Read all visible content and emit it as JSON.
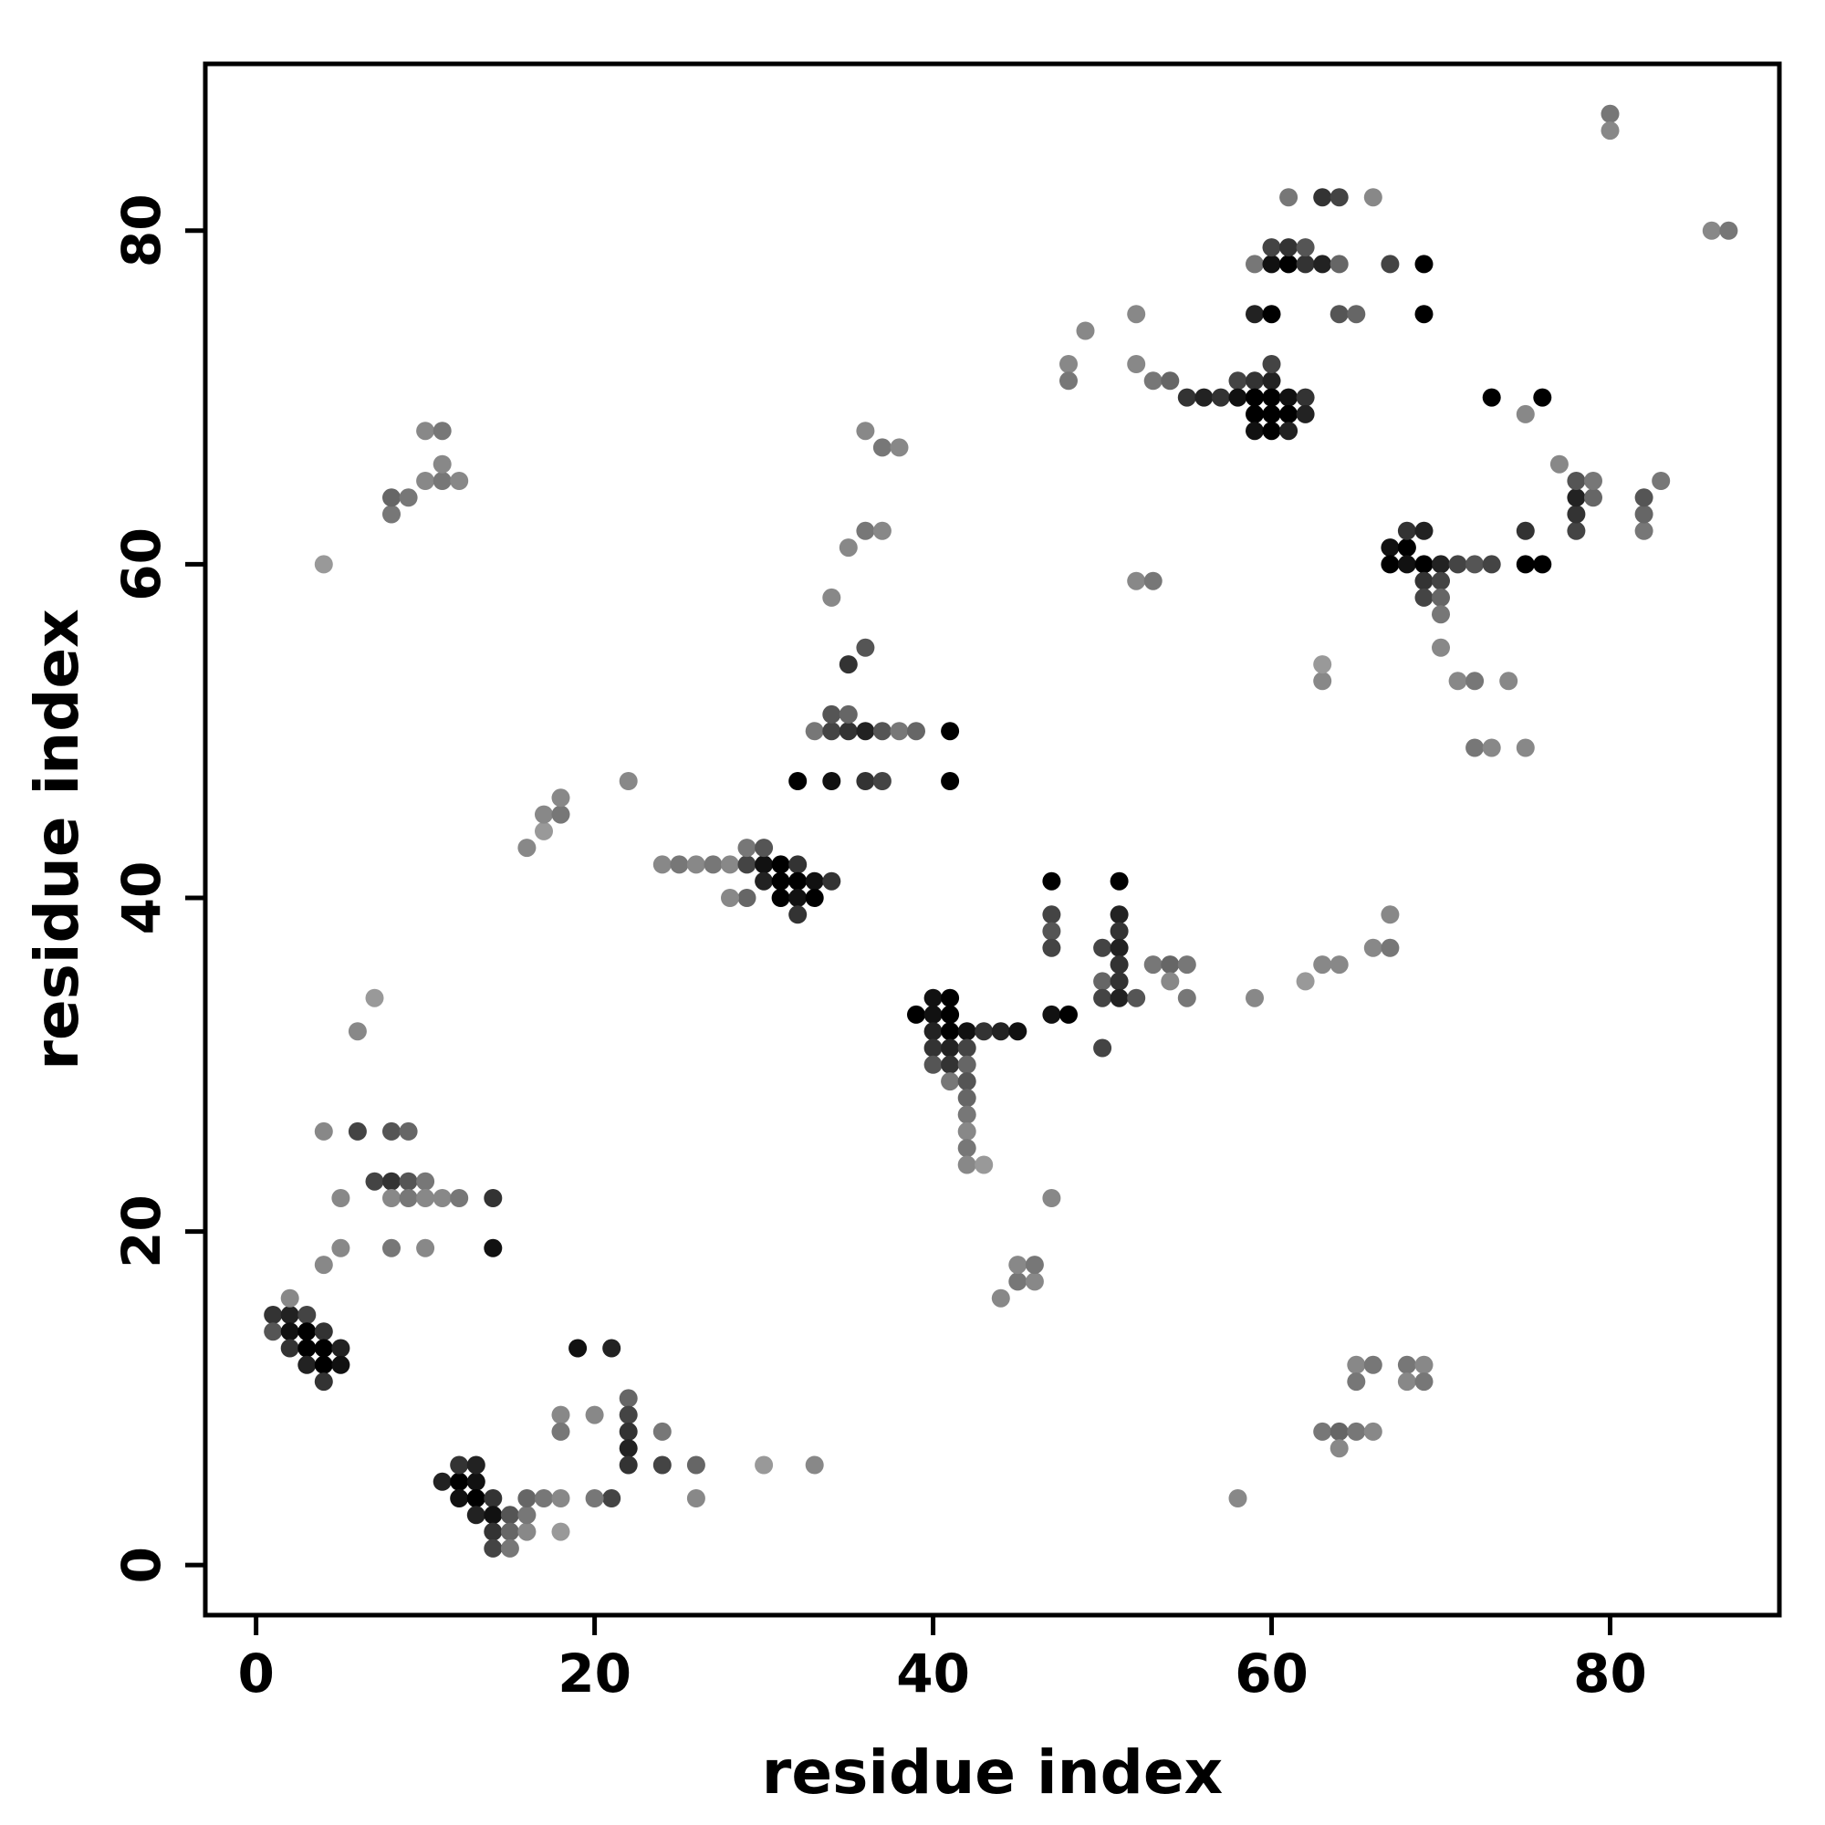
{
  "chart_data": {
    "type": "scatter",
    "title": "",
    "xlabel": "residue index",
    "ylabel": "residue index",
    "xlim": [
      -3,
      90
    ],
    "ylim": [
      -3,
      90
    ],
    "xticks": [
      0,
      20,
      40,
      60,
      80
    ],
    "yticks": [
      0,
      20,
      40,
      60,
      80
    ],
    "grid": false,
    "legend": "none",
    "marker": {
      "shape": "circle",
      "radius": 10
    },
    "points": [
      [
        1,
        15,
        "#333"
      ],
      [
        2,
        15,
        "#222"
      ],
      [
        3,
        15,
        "#444"
      ],
      [
        1,
        14,
        "#555"
      ],
      [
        2,
        14,
        "#111"
      ],
      [
        3,
        14,
        "#000"
      ],
      [
        4,
        14,
        "#333"
      ],
      [
        2,
        13,
        "#333"
      ],
      [
        3,
        13,
        "#000"
      ],
      [
        4,
        13,
        "#000"
      ],
      [
        5,
        13,
        "#222"
      ],
      [
        3,
        12,
        "#222"
      ],
      [
        4,
        12,
        "#000"
      ],
      [
        5,
        12,
        "#111"
      ],
      [
        4,
        11,
        "#333"
      ],
      [
        2,
        16,
        "#888"
      ],
      [
        4,
        18,
        "#888"
      ],
      [
        5,
        19,
        "#888"
      ],
      [
        8,
        19,
        "#777"
      ],
      [
        10,
        19,
        "#888"
      ],
      [
        14,
        19,
        "#111"
      ],
      [
        5,
        22,
        "#888"
      ],
      [
        7,
        23,
        "#444"
      ],
      [
        8,
        23,
        "#333"
      ],
      [
        9,
        23,
        "#555"
      ],
      [
        10,
        23,
        "#777"
      ],
      [
        8,
        22,
        "#888"
      ],
      [
        9,
        22,
        "#777"
      ],
      [
        10,
        22,
        "#888"
      ],
      [
        11,
        22,
        "#888"
      ],
      [
        12,
        22,
        "#777"
      ],
      [
        14,
        22,
        "#333"
      ],
      [
        4,
        26,
        "#888"
      ],
      [
        6,
        26,
        "#444"
      ],
      [
        8,
        26,
        "#555"
      ],
      [
        9,
        26,
        "#666"
      ],
      [
        6,
        32,
        "#888"
      ],
      [
        7,
        34,
        "#999"
      ],
      [
        4,
        60,
        "#999"
      ],
      [
        8,
        63,
        "#777"
      ],
      [
        8,
        64,
        "#666"
      ],
      [
        9,
        64,
        "#777"
      ],
      [
        10,
        65,
        "#888"
      ],
      [
        11,
        65,
        "#777"
      ],
      [
        12,
        65,
        "#888"
      ],
      [
        11,
        66,
        "#888"
      ],
      [
        10,
        68,
        "#888"
      ],
      [
        11,
        68,
        "#777"
      ],
      [
        11,
        5,
        "#222"
      ],
      [
        12,
        5,
        "#000"
      ],
      [
        13,
        5,
        "#111"
      ],
      [
        12,
        6,
        "#333"
      ],
      [
        13,
        6,
        "#222"
      ],
      [
        12,
        4,
        "#111"
      ],
      [
        13,
        4,
        "#000"
      ],
      [
        14,
        4,
        "#333"
      ],
      [
        13,
        3,
        "#222"
      ],
      [
        14,
        3,
        "#111"
      ],
      [
        15,
        3,
        "#555"
      ],
      [
        14,
        2,
        "#333"
      ],
      [
        15,
        2,
        "#666"
      ],
      [
        14,
        1,
        "#444"
      ],
      [
        15,
        1,
        "#777"
      ],
      [
        16,
        2,
        "#888"
      ],
      [
        16,
        3,
        "#777"
      ],
      [
        16,
        4,
        "#666"
      ],
      [
        17,
        4,
        "#777"
      ],
      [
        18,
        4,
        "#888"
      ],
      [
        18,
        2,
        "#999"
      ],
      [
        19,
        13,
        "#111"
      ],
      [
        21,
        13,
        "#222"
      ],
      [
        18,
        9,
        "#888"
      ],
      [
        18,
        8,
        "#777"
      ],
      [
        20,
        9,
        "#888"
      ],
      [
        22,
        10,
        "#666"
      ],
      [
        22,
        9,
        "#444"
      ],
      [
        22,
        8,
        "#333"
      ],
      [
        22,
        7,
        "#222"
      ],
      [
        22,
        6,
        "#333"
      ],
      [
        21,
        4,
        "#444"
      ],
      [
        20,
        4,
        "#777"
      ],
      [
        24,
        8,
        "#777"
      ],
      [
        24,
        6,
        "#444"
      ],
      [
        26,
        6,
        "#666"
      ],
      [
        26,
        4,
        "#888"
      ],
      [
        30,
        6,
        "#999"
      ],
      [
        33,
        6,
        "#888"
      ],
      [
        16,
        43,
        "#888"
      ],
      [
        17,
        44,
        "#999"
      ],
      [
        17,
        45,
        "#888"
      ],
      [
        18,
        45,
        "#777"
      ],
      [
        18,
        46,
        "#888"
      ],
      [
        22,
        47,
        "#888"
      ],
      [
        24,
        42,
        "#888"
      ],
      [
        25,
        42,
        "#777"
      ],
      [
        26,
        42,
        "#888"
      ],
      [
        27,
        42,
        "#777"
      ],
      [
        28,
        42,
        "#888"
      ],
      [
        29,
        42,
        "#444"
      ],
      [
        30,
        42,
        "#111"
      ],
      [
        31,
        42,
        "#000"
      ],
      [
        32,
        42,
        "#333"
      ],
      [
        29,
        43,
        "#777"
      ],
      [
        30,
        43,
        "#555"
      ],
      [
        30,
        41,
        "#222"
      ],
      [
        31,
        41,
        "#000"
      ],
      [
        32,
        41,
        "#000"
      ],
      [
        33,
        41,
        "#111"
      ],
      [
        34,
        41,
        "#333"
      ],
      [
        31,
        40,
        "#000"
      ],
      [
        32,
        40,
        "#111"
      ],
      [
        33,
        40,
        "#000"
      ],
      [
        29,
        40,
        "#666"
      ],
      [
        28,
        40,
        "#888"
      ],
      [
        32,
        39,
        "#333"
      ],
      [
        32,
        47,
        "#000"
      ],
      [
        34,
        47,
        "#111"
      ],
      [
        36,
        47,
        "#333"
      ],
      [
        37,
        47,
        "#444"
      ],
      [
        41,
        47,
        "#000"
      ],
      [
        33,
        50,
        "#777"
      ],
      [
        34,
        50,
        "#444"
      ],
      [
        35,
        50,
        "#333"
      ],
      [
        36,
        50,
        "#222"
      ],
      [
        37,
        50,
        "#555"
      ],
      [
        38,
        50,
        "#777"
      ],
      [
        39,
        50,
        "#666"
      ],
      [
        41,
        50,
        "#000"
      ],
      [
        34,
        51,
        "#555"
      ],
      [
        35,
        51,
        "#666"
      ],
      [
        35,
        54,
        "#333"
      ],
      [
        36,
        55,
        "#555"
      ],
      [
        34,
        58,
        "#888"
      ],
      [
        35,
        61,
        "#888"
      ],
      [
        36,
        62,
        "#777"
      ],
      [
        37,
        62,
        "#888"
      ],
      [
        36,
        68,
        "#888"
      ],
      [
        37,
        67,
        "#777"
      ],
      [
        38,
        67,
        "#888"
      ],
      [
        40,
        34,
        "#111"
      ],
      [
        41,
        34,
        "#000"
      ],
      [
        39,
        33,
        "#000"
      ],
      [
        40,
        33,
        "#111"
      ],
      [
        41,
        33,
        "#000"
      ],
      [
        40,
        32,
        "#222"
      ],
      [
        41,
        32,
        "#000"
      ],
      [
        42,
        32,
        "#111"
      ],
      [
        43,
        32,
        "#333"
      ],
      [
        44,
        32,
        "#222"
      ],
      [
        45,
        32,
        "#111"
      ],
      [
        40,
        31,
        "#333"
      ],
      [
        41,
        31,
        "#222"
      ],
      [
        42,
        31,
        "#444"
      ],
      [
        40,
        30,
        "#555"
      ],
      [
        41,
        30,
        "#333"
      ],
      [
        42,
        30,
        "#666"
      ],
      [
        41,
        29,
        "#777"
      ],
      [
        42,
        29,
        "#555"
      ],
      [
        42,
        28,
        "#666"
      ],
      [
        42,
        27,
        "#777"
      ],
      [
        42,
        26,
        "#888"
      ],
      [
        42,
        25,
        "#777"
      ],
      [
        42,
        24,
        "#888"
      ],
      [
        43,
        24,
        "#999"
      ],
      [
        44,
        16,
        "#888"
      ],
      [
        45,
        17,
        "#777"
      ],
      [
        46,
        17,
        "#888"
      ],
      [
        45,
        18,
        "#888"
      ],
      [
        46,
        18,
        "#777"
      ],
      [
        47,
        22,
        "#888"
      ],
      [
        47,
        41,
        "#000"
      ],
      [
        47,
        39,
        "#444"
      ],
      [
        47,
        38,
        "#555"
      ],
      [
        47,
        37,
        "#444"
      ],
      [
        47,
        33,
        "#111"
      ],
      [
        48,
        33,
        "#000"
      ],
      [
        51,
        41,
        "#000"
      ],
      [
        51,
        39,
        "#222"
      ],
      [
        51,
        38,
        "#333"
      ],
      [
        50,
        37,
        "#444"
      ],
      [
        51,
        37,
        "#222"
      ],
      [
        51,
        36,
        "#333"
      ],
      [
        50,
        35,
        "#666"
      ],
      [
        51,
        35,
        "#333"
      ],
      [
        50,
        34,
        "#444"
      ],
      [
        51,
        34,
        "#222"
      ],
      [
        52,
        34,
        "#555"
      ],
      [
        50,
        31,
        "#444"
      ],
      [
        53,
        36,
        "#777"
      ],
      [
        54,
        36,
        "#666"
      ],
      [
        55,
        36,
        "#777"
      ],
      [
        54,
        35,
        "#888"
      ],
      [
        55,
        34,
        "#777"
      ],
      [
        59,
        34,
        "#888"
      ],
      [
        62,
        35,
        "#999"
      ],
      [
        63,
        36,
        "#888"
      ],
      [
        64,
        36,
        "#888"
      ],
      [
        66,
        37,
        "#888"
      ],
      [
        67,
        37,
        "#777"
      ],
      [
        67,
        39,
        "#888"
      ],
      [
        58,
        4,
        "#888"
      ],
      [
        63,
        8,
        "#777"
      ],
      [
        64,
        8,
        "#666"
      ],
      [
        65,
        8,
        "#777"
      ],
      [
        64,
        7,
        "#888"
      ],
      [
        66,
        8,
        "#888"
      ],
      [
        65,
        12,
        "#888"
      ],
      [
        65,
        11,
        "#777"
      ],
      [
        66,
        12,
        "#777"
      ],
      [
        68,
        12,
        "#777"
      ],
      [
        69,
        12,
        "#888"
      ],
      [
        68,
        11,
        "#888"
      ],
      [
        69,
        11,
        "#777"
      ],
      [
        52,
        59,
        "#888"
      ],
      [
        53,
        59,
        "#777"
      ],
      [
        63,
        53,
        "#888"
      ],
      [
        63,
        54,
        "#999"
      ],
      [
        48,
        72,
        "#888"
      ],
      [
        48,
        71,
        "#777"
      ],
      [
        49,
        74,
        "#888"
      ],
      [
        52,
        75,
        "#888"
      ],
      [
        52,
        72,
        "#888"
      ],
      [
        53,
        71,
        "#777"
      ],
      [
        54,
        71,
        "#666"
      ],
      [
        55,
        70,
        "#333"
      ],
      [
        56,
        70,
        "#222"
      ],
      [
        57,
        70,
        "#333"
      ],
      [
        58,
        71,
        "#444"
      ],
      [
        59,
        71,
        "#333"
      ],
      [
        60,
        71,
        "#222"
      ],
      [
        58,
        70,
        "#111"
      ],
      [
        59,
        70,
        "#000"
      ],
      [
        60,
        70,
        "#000"
      ],
      [
        61,
        70,
        "#111"
      ],
      [
        62,
        70,
        "#333"
      ],
      [
        59,
        69,
        "#000"
      ],
      [
        60,
        69,
        "#000"
      ],
      [
        61,
        69,
        "#000"
      ],
      [
        62,
        69,
        "#222"
      ],
      [
        59,
        68,
        "#111"
      ],
      [
        60,
        68,
        "#000"
      ],
      [
        61,
        68,
        "#222"
      ],
      [
        60,
        72,
        "#444"
      ],
      [
        59,
        75,
        "#222"
      ],
      [
        60,
        75,
        "#000"
      ],
      [
        64,
        75,
        "#555"
      ],
      [
        65,
        75,
        "#666"
      ],
      [
        69,
        75,
        "#000"
      ],
      [
        59,
        78,
        "#777"
      ],
      [
        60,
        78,
        "#111"
      ],
      [
        61,
        78,
        "#000"
      ],
      [
        62,
        78,
        "#333"
      ],
      [
        63,
        78,
        "#222"
      ],
      [
        64,
        78,
        "#666"
      ],
      [
        60,
        79,
        "#444"
      ],
      [
        61,
        79,
        "#333"
      ],
      [
        62,
        79,
        "#555"
      ],
      [
        67,
        78,
        "#444"
      ],
      [
        69,
        78,
        "#000"
      ],
      [
        61,
        82,
        "#777"
      ],
      [
        63,
        82,
        "#333"
      ],
      [
        64,
        82,
        "#444"
      ],
      [
        66,
        82,
        "#888"
      ],
      [
        73,
        70,
        "#000"
      ],
      [
        76,
        70,
        "#000"
      ],
      [
        80,
        87,
        "#777"
      ],
      [
        80,
        86,
        "#888"
      ],
      [
        86,
        80,
        "#888"
      ],
      [
        87,
        80,
        "#777"
      ],
      [
        67,
        61,
        "#111"
      ],
      [
        68,
        61,
        "#000"
      ],
      [
        67,
        60,
        "#000"
      ],
      [
        68,
        60,
        "#111"
      ],
      [
        69,
        60,
        "#000"
      ],
      [
        70,
        60,
        "#222"
      ],
      [
        68,
        62,
        "#333"
      ],
      [
        69,
        62,
        "#222"
      ],
      [
        69,
        59,
        "#333"
      ],
      [
        70,
        59,
        "#444"
      ],
      [
        69,
        58,
        "#444"
      ],
      [
        70,
        58,
        "#666"
      ],
      [
        70,
        57,
        "#777"
      ],
      [
        70,
        55,
        "#888"
      ],
      [
        71,
        60,
        "#444"
      ],
      [
        72,
        60,
        "#555"
      ],
      [
        73,
        60,
        "#444"
      ],
      [
        75,
        60,
        "#000"
      ],
      [
        76,
        60,
        "#000"
      ],
      [
        75,
        62,
        "#333"
      ],
      [
        71,
        53,
        "#888"
      ],
      [
        72,
        53,
        "#777"
      ],
      [
        74,
        53,
        "#888"
      ],
      [
        72,
        49,
        "#777"
      ],
      [
        73,
        49,
        "#888"
      ],
      [
        75,
        49,
        "#888"
      ],
      [
        78,
        62,
        "#444"
      ],
      [
        78,
        63,
        "#333"
      ],
      [
        78,
        64,
        "#222"
      ],
      [
        78,
        65,
        "#555"
      ],
      [
        79,
        64,
        "#666"
      ],
      [
        79,
        65,
        "#777"
      ],
      [
        77,
        66,
        "#888"
      ],
      [
        75,
        69,
        "#888"
      ],
      [
        82,
        62,
        "#777"
      ],
      [
        82,
        63,
        "#666"
      ],
      [
        82,
        64,
        "#555"
      ],
      [
        83,
        65,
        "#777"
      ]
    ]
  }
}
